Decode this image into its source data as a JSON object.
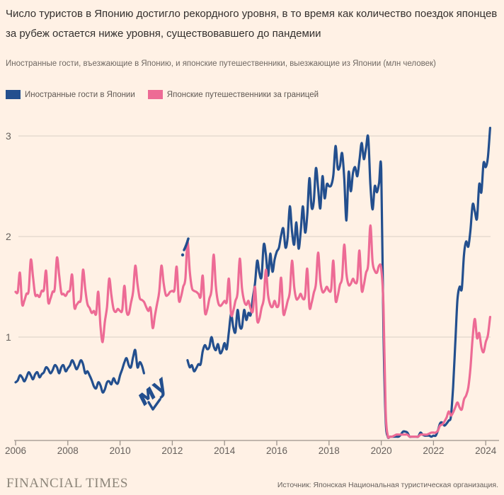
{
  "header": {
    "title": "Число туристов в Японию достигло рекордного уровня, в то время как количество поездок японцев за рубеж остается ниже уровня, существовавшего до пандемии",
    "subtitle": "Иностранные гости, въезжающие в Японию, и японские путешественники, выезжающие из Японии (млн человек)"
  },
  "footer": {
    "brand": "FINANCIAL TIMES",
    "source": "Источник: Японская Национальная туристическая организация."
  },
  "colors": {
    "background": "#FFF1E5",
    "grid": "#d8cfc5",
    "axis": "#9c948c",
    "tick_label": "#66605c",
    "visitors_blue": "#234F8E",
    "travelers_pink": "#ED6B95"
  },
  "chart_data": {
    "type": "line",
    "title": "Число туристов в Японию достигло рекордного уровня, в то время как количество поездок японцев за рубеж остается ниже уровня, существовавшего до пандемии",
    "subtitle": "Иностранные гости, въезжающие в Японию, и японские путешественники, выезжающие из Японии (млн человек)",
    "unit": "млн человек",
    "x_start_year": 2006,
    "x_step": "month",
    "x_ticks": [
      2006,
      2008,
      2010,
      2012,
      2014,
      2016,
      2018,
      2020,
      2022,
      2024
    ],
    "y_ticks": [
      1,
      2,
      3
    ],
    "y_range": [
      0,
      3.15
    ],
    "grid": true,
    "legend_position": "top-left",
    "annotation": {
      "text": "му"
    },
    "series": [
      {
        "name": "Иностранные гости в Японии",
        "color": "#234F8E",
        "values": [
          0.55,
          0.57,
          0.62,
          0.6,
          0.56,
          0.6,
          0.65,
          0.62,
          0.58,
          0.63,
          0.65,
          0.6,
          0.63,
          0.65,
          0.7,
          0.68,
          0.64,
          0.67,
          0.72,
          0.7,
          0.64,
          0.7,
          0.72,
          0.66,
          0.69,
          0.72,
          0.77,
          0.73,
          0.68,
          0.72,
          0.77,
          0.73,
          0.64,
          0.66,
          0.62,
          0.57,
          0.51,
          0.49,
          0.55,
          0.52,
          0.45,
          0.48,
          0.55,
          0.56,
          0.53,
          0.59,
          0.55,
          0.54,
          0.62,
          0.68,
          0.75,
          0.79,
          0.72,
          0.7,
          0.8,
          0.87,
          0.7,
          0.75,
          0.72,
          0.64,
          null,
          null,
          null,
          null,
          null,
          null,
          null,
          null,
          null,
          null,
          null,
          null,
          null,
          null,
          null,
          null,
          null,
          null,
          null,
          0.77,
          0.7,
          0.72,
          0.66,
          0.69,
          0.73,
          0.73,
          0.86,
          0.92,
          0.88,
          0.9,
          1.0,
          0.91,
          0.87,
          0.93,
          0.84,
          0.87,
          0.94,
          0.88,
          1.05,
          1.23,
          1.1,
          1.05,
          1.27,
          1.11,
          1.1,
          1.27,
          1.17,
          1.24,
          1.22,
          1.39,
          1.53,
          1.76,
          1.64,
          1.6,
          1.92,
          1.82,
          1.61,
          1.83,
          1.65,
          1.77,
          1.85,
          1.89,
          2.01,
          2.08,
          1.89,
          1.99,
          2.3,
          2.05,
          1.92,
          2.14,
          1.88,
          2.05,
          2.3,
          2.04,
          2.21,
          2.58,
          2.29,
          2.35,
          2.68,
          2.48,
          2.28,
          2.6,
          2.38,
          2.52,
          2.5,
          2.51,
          2.61,
          2.9,
          2.68,
          2.7,
          2.83,
          2.58,
          2.16,
          2.64,
          2.45,
          2.63,
          2.69,
          2.6,
          2.76,
          2.93,
          2.77,
          2.88,
          2.99,
          2.52,
          2.27,
          2.5,
          2.44,
          2.53,
          2.66,
          1.09,
          0.19,
          0.01,
          0.01,
          0.01,
          0.01,
          0.01,
          0.01,
          0.03,
          0.06,
          0.06,
          0.05,
          0.01,
          0.01,
          0.01,
          0.01,
          0.01,
          0.05,
          0.03,
          0.02,
          0.02,
          0.02,
          0.01,
          0.02,
          0.02,
          0.07,
          0.14,
          0.15,
          0.12,
          0.14,
          0.17,
          0.21,
          0.5,
          0.93,
          1.37,
          1.5,
          1.48,
          1.82,
          1.95,
          1.9,
          2.07,
          2.32,
          2.25,
          2.18,
          2.52,
          2.44,
          2.73,
          2.69,
          2.79,
          3.08
        ]
      },
      {
        "name": "Японские путешественники за границей",
        "color": "#ED6B95",
        "values": [
          1.45,
          1.45,
          1.64,
          1.33,
          1.36,
          1.43,
          1.46,
          1.77,
          1.6,
          1.42,
          1.42,
          1.4,
          1.46,
          1.47,
          1.66,
          1.35,
          1.38,
          1.45,
          1.48,
          1.79,
          1.62,
          1.44,
          1.43,
          1.41,
          1.45,
          1.47,
          1.62,
          1.3,
          1.32,
          1.35,
          1.38,
          1.67,
          1.48,
          1.33,
          1.29,
          1.24,
          1.26,
          1.23,
          1.45,
          1.11,
          0.95,
          1.15,
          1.3,
          1.58,
          1.42,
          1.28,
          1.25,
          1.28,
          1.26,
          1.27,
          1.51,
          1.26,
          1.23,
          1.34,
          1.45,
          1.71,
          1.53,
          1.39,
          1.37,
          1.35,
          1.3,
          1.26,
          1.29,
          1.09,
          1.21,
          1.33,
          1.45,
          1.71,
          1.54,
          1.42,
          1.42,
          1.45,
          1.46,
          1.47,
          1.7,
          1.37,
          1.4,
          1.5,
          1.58,
          1.95,
          1.66,
          1.49,
          1.46,
          1.45,
          1.43,
          1.4,
          1.61,
          1.25,
          1.27,
          1.38,
          1.47,
          1.82,
          1.51,
          1.35,
          1.31,
          1.33,
          1.36,
          1.35,
          1.58,
          1.23,
          1.26,
          1.36,
          1.44,
          1.78,
          1.49,
          1.36,
          1.32,
          1.36,
          1.28,
          1.26,
          1.5,
          1.17,
          1.18,
          1.29,
          1.38,
          1.67,
          1.42,
          1.32,
          1.3,
          1.36,
          1.3,
          1.34,
          1.59,
          1.24,
          1.27,
          1.36,
          1.45,
          1.76,
          1.5,
          1.38,
          1.39,
          1.43,
          1.38,
          1.41,
          1.68,
          1.3,
          1.34,
          1.44,
          1.53,
          1.84,
          1.56,
          1.45,
          1.46,
          1.5,
          1.46,
          1.48,
          1.76,
          1.37,
          1.41,
          1.52,
          1.59,
          1.92,
          1.63,
          1.52,
          1.53,
          1.58,
          1.54,
          1.57,
          1.86,
          1.47,
          1.52,
          1.64,
          1.72,
          2.11,
          1.75,
          1.66,
          1.64,
          1.71,
          1.68,
          1.32,
          0.27,
          0.02,
          0.01,
          0.01,
          0.02,
          0.03,
          0.03,
          0.03,
          0.03,
          0.03,
          0.03,
          0.01,
          0.01,
          0.01,
          0.01,
          0.01,
          0.03,
          0.03,
          0.03,
          0.03,
          0.04,
          0.05,
          0.05,
          0.05,
          0.07,
          0.12,
          0.13,
          0.16,
          0.2,
          0.26,
          0.22,
          0.25,
          0.3,
          0.35,
          0.3,
          0.28,
          0.38,
          0.42,
          0.5,
          0.7,
          1.0,
          1.18,
          0.99,
          1.04,
          0.9,
          0.85,
          0.95,
          1.02,
          1.2
        ]
      }
    ]
  }
}
